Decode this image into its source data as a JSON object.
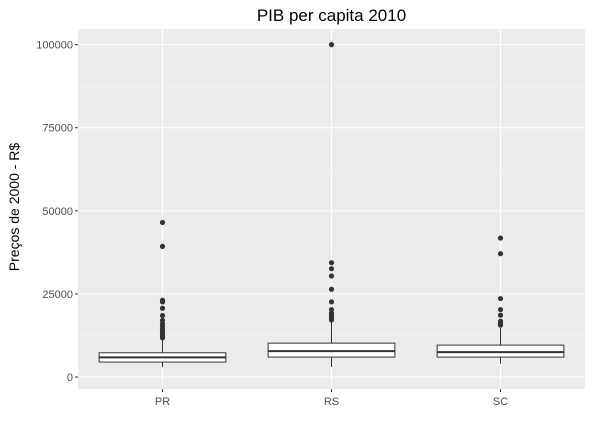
{
  "chart_data": {
    "type": "box",
    "title": "PIB per capita 2010",
    "xlabel": "",
    "ylabel": "Preços de 2000 - R$",
    "ylim": [
      -3600,
      104700
    ],
    "y_ticks": [
      0,
      25000,
      50000,
      75000,
      100000
    ],
    "y_tick_labels": [
      "0",
      "25000",
      "50000",
      "75000",
      "100000"
    ],
    "grid": true,
    "legend": "none",
    "categories": [
      "PR",
      "RS",
      "SC"
    ],
    "boxes": [
      {
        "category": "PR",
        "whisker_low": 3000,
        "q1": 4500,
        "median": 5900,
        "q3": 7300,
        "whisker_high": 11400,
        "outliers": [
          46500,
          39300,
          23100,
          22600,
          20700,
          18500,
          17000,
          16000,
          15200,
          14400,
          13700,
          13000,
          12400,
          11800
        ]
      },
      {
        "category": "RS",
        "whisker_low": 3000,
        "q1": 6000,
        "median": 7800,
        "q3": 10200,
        "whisker_high": 16500,
        "outliers": [
          100000,
          34400,
          32600,
          30400,
          26400,
          22600,
          20300,
          19200,
          18500,
          17800,
          17200
        ]
      },
      {
        "category": "SC",
        "whisker_low": 4000,
        "q1": 6000,
        "median": 7500,
        "q3": 9600,
        "whisker_high": 14800,
        "outliers": [
          41800,
          37100,
          23600,
          20300,
          18600,
          16800,
          16200,
          15600
        ]
      }
    ]
  },
  "colors": {
    "panel": "#ebebeb",
    "grid_major": "#ffffff",
    "grid_minor": "#f4f4f4",
    "box_fill": "#ffffff",
    "box_line": "#333333",
    "outlier": "#333333",
    "tick_text": "#4d4d4d",
    "tick": "#333333"
  }
}
